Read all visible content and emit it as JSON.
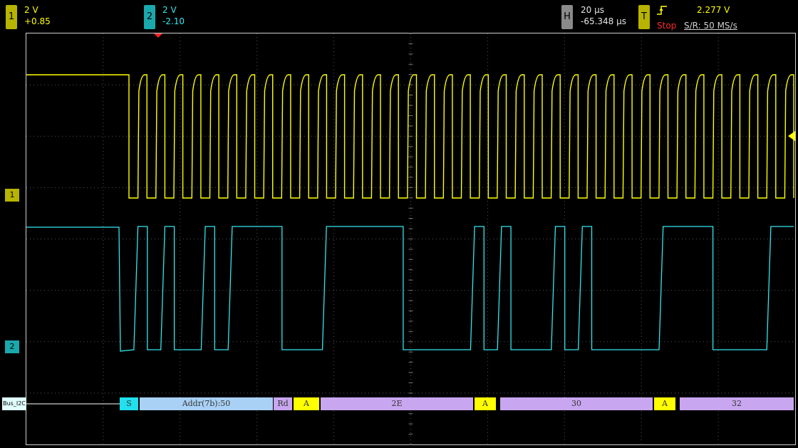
{
  "channels": [
    {
      "id": "1",
      "scale": "2 V",
      "offset": "+0.85",
      "color": "#ffff00",
      "badge_bg": "#b7b300"
    },
    {
      "id": "2",
      "scale": "2 V",
      "offset": "-2.10",
      "color": "#33e6ee",
      "badge_bg": "#1aa8ac"
    }
  ],
  "horizontal": {
    "badge": "H",
    "timebase": "20 µs",
    "delay": "-65.348 µs",
    "badge_bg": "#8a8a8a"
  },
  "trigger": {
    "badge": "T",
    "level": "2.277 V",
    "state": "Stop",
    "sample_rate": "S/R: 50 MS/s",
    "badge_bg": "#b7b300"
  },
  "markers": {
    "ch1": "1",
    "ch2": "2"
  },
  "bus": {
    "label": "Bus_I2C",
    "segments": [
      {
        "text": "S",
        "kind": "start",
        "color": "#22e0ee"
      },
      {
        "text": "Addr(7b):50",
        "kind": "address",
        "color": "#a9d1f5"
      },
      {
        "text": "Rd",
        "kind": "rw",
        "color": "#c9a6f0"
      },
      {
        "text": "A",
        "kind": "ack",
        "color": "#ffff00"
      },
      {
        "text": "2E",
        "kind": "data",
        "color": "#c9a6f0"
      },
      {
        "text": "A",
        "kind": "ack",
        "color": "#ffff00"
      },
      {
        "text": "30",
        "kind": "data",
        "color": "#c9a6f0"
      },
      {
        "text": "A",
        "kind": "ack",
        "color": "#ffff00"
      },
      {
        "text": "32",
        "kind": "data",
        "color": "#c9a6f0"
      }
    ]
  },
  "signals": {
    "scl_pulse_count": 37,
    "sda_bits": "01010010111100011111100000101000101000001111000011"
  }
}
